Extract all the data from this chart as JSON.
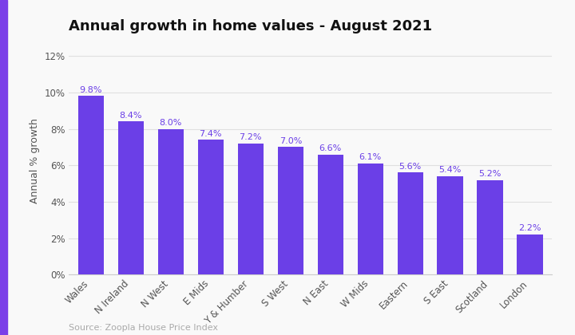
{
  "title": "Annual growth in home values - August 2021",
  "ylabel": "Annual % growth",
  "source": "Source: Zoopla House Price Index",
  "categories": [
    "Wales",
    "N Ireland",
    "N West",
    "E Mids",
    "Y & Humber",
    "S West",
    "N East",
    "W Mids",
    "Eastern",
    "S East",
    "Scotland",
    "London"
  ],
  "values": [
    9.8,
    8.4,
    8.0,
    7.4,
    7.2,
    7.0,
    6.6,
    6.1,
    5.6,
    5.4,
    5.2,
    2.2
  ],
  "bar_color": "#6B3FE7",
  "label_color": "#6B3FE7",
  "background_color": "#f9f9f9",
  "left_border_color": "#7B3FE8",
  "ylim": [
    0,
    12.5
  ],
  "yticks": [
    0,
    2,
    4,
    6,
    8,
    10,
    12
  ],
  "ytick_labels": [
    "0%",
    "2%",
    "4%",
    "6%",
    "8%",
    "10%",
    "12%"
  ],
  "title_fontsize": 13,
  "ylabel_fontsize": 9,
  "bar_label_fontsize": 8,
  "source_fontsize": 8,
  "tick_fontsize": 8.5
}
